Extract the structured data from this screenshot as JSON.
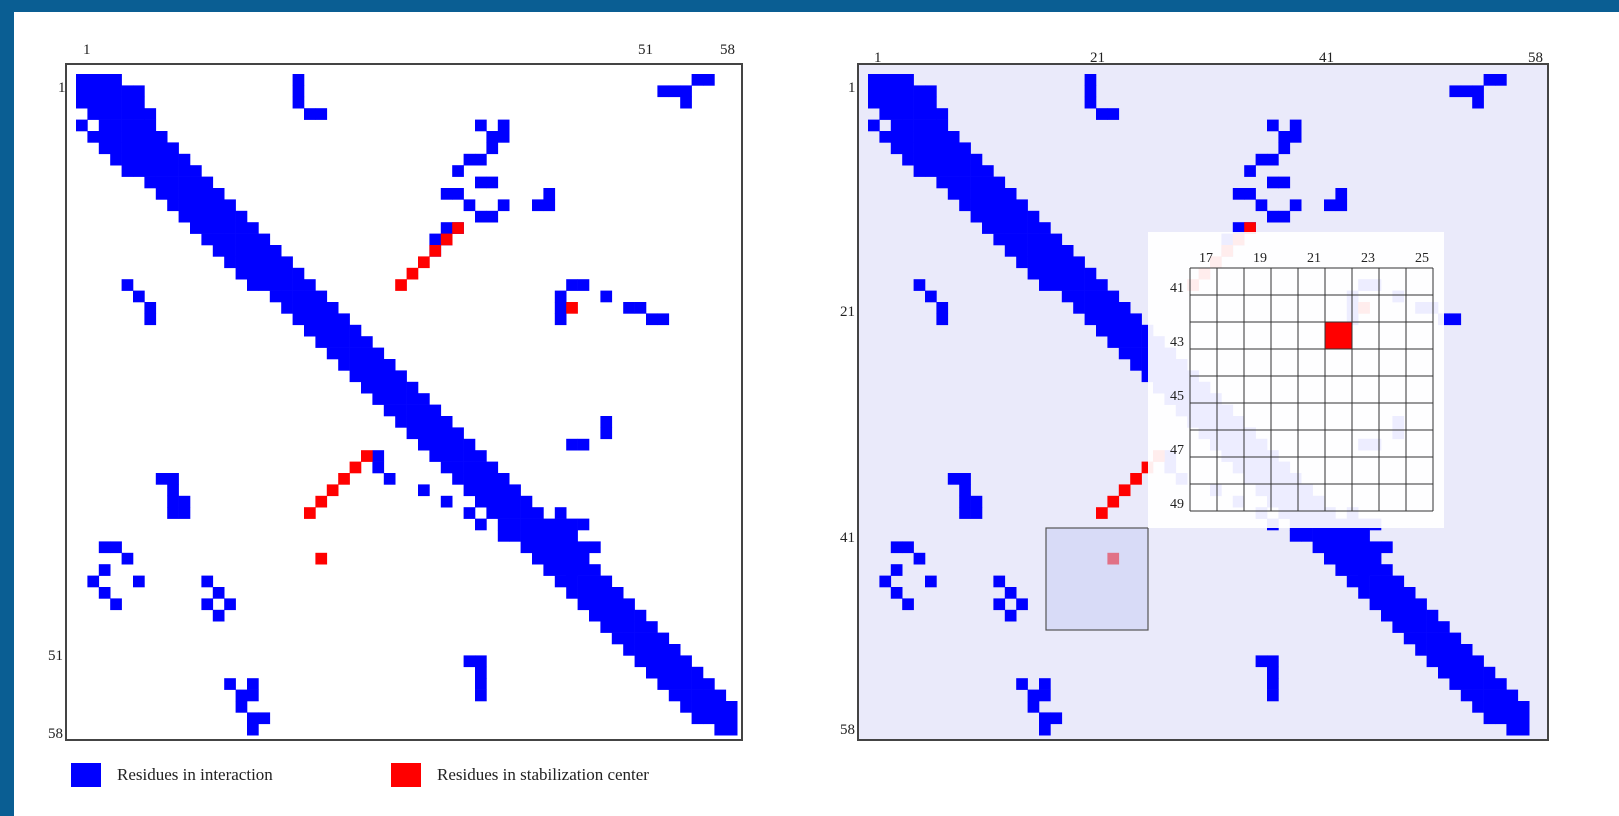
{
  "colors": {
    "interaction": "#0000ff",
    "stabilization": "#ff0000",
    "highlight": "#eaeafa"
  },
  "left_map": {
    "ticks_top": [
      "1",
      "51",
      "58"
    ],
    "ticks_left": [
      "1",
      "51",
      "58"
    ]
  },
  "right_map": {
    "ticks_top": [
      "1",
      "21",
      "41",
      "58"
    ],
    "ticks_left": [
      "1",
      "21",
      "41",
      "58"
    ]
  },
  "inset": {
    "col_labels": [
      "17",
      "19",
      "21",
      "23",
      "25"
    ],
    "row_labels": [
      "41",
      "43",
      "45",
      "47",
      "49"
    ]
  },
  "legend": {
    "interaction_label": "Residues in interaction",
    "stabilization_label": "Residues in stabilization center"
  },
  "contacts": {
    "blue": [
      [
        1,
        1
      ],
      [
        1,
        2
      ],
      [
        1,
        3
      ],
      [
        1,
        4
      ],
      [
        2,
        1
      ],
      [
        2,
        2
      ],
      [
        2,
        3
      ],
      [
        2,
        4
      ],
      [
        2,
        5
      ],
      [
        2,
        6
      ],
      [
        3,
        1
      ],
      [
        3,
        2
      ],
      [
        3,
        3
      ],
      [
        3,
        4
      ],
      [
        3,
        5
      ],
      [
        3,
        6
      ],
      [
        4,
        2
      ],
      [
        4,
        3
      ],
      [
        4,
        4
      ],
      [
        4,
        5
      ],
      [
        4,
        6
      ],
      [
        4,
        7
      ],
      [
        5,
        1
      ],
      [
        5,
        3
      ],
      [
        5,
        4
      ],
      [
        5,
        5
      ],
      [
        5,
        6
      ],
      [
        5,
        7
      ],
      [
        6,
        2
      ],
      [
        6,
        3
      ],
      [
        6,
        4
      ],
      [
        6,
        5
      ],
      [
        6,
        6
      ],
      [
        6,
        7
      ],
      [
        6,
        8
      ],
      [
        7,
        3
      ],
      [
        7,
        4
      ],
      [
        7,
        5
      ],
      [
        7,
        6
      ],
      [
        7,
        7
      ],
      [
        7,
        8
      ],
      [
        7,
        9
      ],
      [
        8,
        4
      ],
      [
        8,
        5
      ],
      [
        8,
        6
      ],
      [
        8,
        7
      ],
      [
        8,
        8
      ],
      [
        8,
        9
      ],
      [
        8,
        10
      ],
      [
        9,
        5
      ],
      [
        9,
        6
      ],
      [
        9,
        7
      ],
      [
        9,
        8
      ],
      [
        9,
        9
      ],
      [
        9,
        10
      ],
      [
        9,
        11
      ],
      [
        10,
        7
      ],
      [
        10,
        8
      ],
      [
        10,
        9
      ],
      [
        10,
        10
      ],
      [
        10,
        11
      ],
      [
        10,
        12
      ],
      [
        11,
        8
      ],
      [
        11,
        9
      ],
      [
        11,
        10
      ],
      [
        11,
        11
      ],
      [
        11,
        12
      ],
      [
        11,
        13
      ],
      [
        12,
        9
      ],
      [
        12,
        10
      ],
      [
        12,
        11
      ],
      [
        12,
        12
      ],
      [
        12,
        13
      ],
      [
        12,
        14
      ],
      [
        13,
        10
      ],
      [
        13,
        11
      ],
      [
        13,
        12
      ],
      [
        13,
        13
      ],
      [
        13,
        14
      ],
      [
        13,
        15
      ],
      [
        14,
        11
      ],
      [
        14,
        12
      ],
      [
        14,
        13
      ],
      [
        14,
        14
      ],
      [
        14,
        15
      ],
      [
        14,
        16
      ],
      [
        15,
        12
      ],
      [
        15,
        13
      ],
      [
        15,
        14
      ],
      [
        15,
        15
      ],
      [
        15,
        16
      ],
      [
        15,
        17
      ],
      [
        16,
        13
      ],
      [
        16,
        14
      ],
      [
        16,
        15
      ],
      [
        16,
        16
      ],
      [
        16,
        17
      ],
      [
        16,
        18
      ],
      [
        17,
        14
      ],
      [
        17,
        15
      ],
      [
        17,
        16
      ],
      [
        17,
        17
      ],
      [
        17,
        18
      ],
      [
        17,
        19
      ],
      [
        18,
        15
      ],
      [
        18,
        16
      ],
      [
        18,
        17
      ],
      [
        18,
        18
      ],
      [
        18,
        19
      ],
      [
        18,
        20
      ],
      [
        19,
        16
      ],
      [
        19,
        17
      ],
      [
        19,
        18
      ],
      [
        19,
        19
      ],
      [
        19,
        20
      ],
      [
        19,
        21
      ],
      [
        20,
        18
      ],
      [
        20,
        19
      ],
      [
        20,
        20
      ],
      [
        20,
        21
      ],
      [
        20,
        22
      ],
      [
        21,
        19
      ],
      [
        21,
        20
      ],
      [
        21,
        21
      ],
      [
        21,
        22
      ],
      [
        21,
        23
      ],
      [
        22,
        20
      ],
      [
        22,
        21
      ],
      [
        22,
        22
      ],
      [
        22,
        23
      ],
      [
        22,
        24
      ],
      [
        23,
        21
      ],
      [
        23,
        22
      ],
      [
        23,
        23
      ],
      [
        23,
        24
      ],
      [
        23,
        25
      ],
      [
        24,
        22
      ],
      [
        24,
        23
      ],
      [
        24,
        24
      ],
      [
        24,
        25
      ],
      [
        24,
        26
      ],
      [
        25,
        23
      ],
      [
        25,
        24
      ],
      [
        25,
        25
      ],
      [
        25,
        26
      ],
      [
        25,
        27
      ],
      [
        26,
        24
      ],
      [
        26,
        25
      ],
      [
        26,
        26
      ],
      [
        26,
        27
      ],
      [
        26,
        28
      ],
      [
        27,
        25
      ],
      [
        27,
        26
      ],
      [
        27,
        27
      ],
      [
        27,
        28
      ],
      [
        27,
        29
      ],
      [
        28,
        26
      ],
      [
        28,
        27
      ],
      [
        28,
        28
      ],
      [
        28,
        29
      ],
      [
        28,
        30
      ],
      [
        29,
        27
      ],
      [
        29,
        28
      ],
      [
        29,
        29
      ],
      [
        29,
        30
      ],
      [
        29,
        31
      ],
      [
        30,
        28
      ],
      [
        30,
        29
      ],
      [
        30,
        30
      ],
      [
        30,
        31
      ],
      [
        30,
        32
      ],
      [
        31,
        29
      ],
      [
        31,
        30
      ],
      [
        31,
        31
      ],
      [
        31,
        32
      ],
      [
        31,
        33
      ],
      [
        32,
        30
      ],
      [
        32,
        31
      ],
      [
        32,
        32
      ],
      [
        32,
        33
      ],
      [
        32,
        34
      ],
      [
        33,
        31
      ],
      [
        33,
        32
      ],
      [
        33,
        33
      ],
      [
        33,
        34
      ],
      [
        33,
        35
      ],
      [
        34,
        32
      ],
      [
        34,
        33
      ],
      [
        34,
        34
      ],
      [
        34,
        35
      ],
      [
        34,
        36
      ],
      [
        35,
        33
      ],
      [
        35,
        34
      ],
      [
        35,
        35
      ],
      [
        35,
        36
      ],
      [
        35,
        37
      ],
      [
        36,
        34
      ],
      [
        36,
        35
      ],
      [
        36,
        36
      ],
      [
        36,
        37
      ],
      [
        36,
        38
      ],
      [
        37,
        35
      ],
      [
        37,
        36
      ],
      [
        37,
        37
      ],
      [
        37,
        38
      ],
      [
        37,
        39
      ],
      [
        38,
        36
      ],
      [
        38,
        37
      ],
      [
        38,
        38
      ],
      [
        38,
        39
      ],
      [
        38,
        40
      ],
      [
        39,
        37
      ],
      [
        39,
        38
      ],
      [
        39,
        39
      ],
      [
        39,
        40
      ],
      [
        39,
        41
      ],
      [
        40,
        38
      ],
      [
        40,
        39
      ],
      [
        40,
        40
      ],
      [
        40,
        41
      ],
      [
        40,
        42
      ],
      [
        41,
        39
      ],
      [
        41,
        40
      ],
      [
        41,
        41
      ],
      [
        41,
        42
      ],
      [
        41,
        43
      ],
      [
        42,
        40
      ],
      [
        42,
        41
      ],
      [
        42,
        42
      ],
      [
        42,
        43
      ],
      [
        42,
        44
      ],
      [
        43,
        41
      ],
      [
        43,
        42
      ],
      [
        43,
        43
      ],
      [
        43,
        44
      ],
      [
        43,
        45
      ],
      [
        44,
        42
      ],
      [
        44,
        43
      ],
      [
        44,
        44
      ],
      [
        44,
        45
      ],
      [
        44,
        46
      ],
      [
        45,
        43
      ],
      [
        45,
        44
      ],
      [
        45,
        45
      ],
      [
        45,
        46
      ],
      [
        45,
        47
      ],
      [
        46,
        44
      ],
      [
        46,
        45
      ],
      [
        46,
        46
      ],
      [
        46,
        47
      ],
      [
        46,
        48
      ],
      [
        47,
        45
      ],
      [
        47,
        46
      ],
      [
        47,
        47
      ],
      [
        47,
        48
      ],
      [
        47,
        49
      ],
      [
        48,
        46
      ],
      [
        48,
        47
      ],
      [
        48,
        48
      ],
      [
        48,
        49
      ],
      [
        48,
        50
      ],
      [
        49,
        47
      ],
      [
        49,
        48
      ],
      [
        49,
        49
      ],
      [
        49,
        50
      ],
      [
        49,
        51
      ],
      [
        50,
        48
      ],
      [
        50,
        49
      ],
      [
        50,
        50
      ],
      [
        50,
        51
      ],
      [
        50,
        52
      ],
      [
        51,
        49
      ],
      [
        51,
        50
      ],
      [
        51,
        51
      ],
      [
        51,
        52
      ],
      [
        51,
        53
      ],
      [
        52,
        50
      ],
      [
        52,
        51
      ],
      [
        52,
        52
      ],
      [
        52,
        53
      ],
      [
        52,
        54
      ],
      [
        53,
        51
      ],
      [
        53,
        52
      ],
      [
        53,
        53
      ],
      [
        53,
        54
      ],
      [
        53,
        55
      ],
      [
        54,
        52
      ],
      [
        54,
        53
      ],
      [
        54,
        54
      ],
      [
        54,
        55
      ],
      [
        54,
        56
      ],
      [
        55,
        53
      ],
      [
        55,
        54
      ],
      [
        55,
        55
      ],
      [
        55,
        56
      ],
      [
        55,
        57
      ],
      [
        56,
        54
      ],
      [
        56,
        55
      ],
      [
        56,
        56
      ],
      [
        56,
        57
      ],
      [
        56,
        58
      ],
      [
        57,
        55
      ],
      [
        57,
        56
      ],
      [
        57,
        57
      ],
      [
        57,
        58
      ],
      [
        58,
        57
      ],
      [
        58,
        58
      ],
      [
        14,
        33
      ],
      [
        14,
        34
      ],
      [
        13,
        36
      ],
      [
        13,
        37
      ],
      [
        12,
        35
      ],
      [
        11,
        33
      ],
      [
        11,
        34
      ],
      [
        12,
        38
      ],
      [
        15,
        32
      ],
      [
        15,
        33
      ],
      [
        16,
        32
      ],
      [
        19,
        44
      ],
      [
        19,
        45
      ],
      [
        20,
        43
      ],
      [
        20,
        47
      ],
      [
        21,
        43
      ],
      [
        22,
        43
      ],
      [
        21,
        49
      ],
      [
        21,
        50
      ],
      [
        22,
        51
      ],
      [
        22,
        52
      ],
      [
        33,
        44
      ],
      [
        33,
        45
      ],
      [
        32,
        47
      ],
      [
        31,
        47
      ],
      [
        34,
        27
      ],
      [
        35,
        27
      ],
      [
        36,
        28
      ],
      [
        37,
        31
      ],
      [
        38,
        33
      ],
      [
        39,
        35
      ],
      [
        40,
        36
      ],
      [
        41,
        38
      ],
      [
        41,
        44
      ],
      [
        42,
        44
      ],
      [
        43,
        44
      ],
      [
        44,
        44
      ],
      [
        43,
        45
      ],
      [
        42,
        45
      ],
      [
        42,
        46
      ],
      [
        1,
        20
      ],
      [
        2,
        20
      ],
      [
        3,
        20
      ],
      [
        4,
        21
      ],
      [
        4,
        22
      ],
      [
        2,
        52
      ],
      [
        2,
        53
      ],
      [
        2,
        54
      ],
      [
        3,
        54
      ],
      [
        1,
        55
      ],
      [
        1,
        56
      ],
      [
        5,
        36
      ],
      [
        5,
        38
      ],
      [
        6,
        38
      ],
      [
        6,
        37
      ],
      [
        7,
        37
      ],
      [
        8,
        35
      ],
      [
        8,
        36
      ],
      [
        9,
        34
      ],
      [
        10,
        36
      ],
      [
        10,
        37
      ],
      [
        12,
        41
      ],
      [
        12,
        42
      ],
      [
        11,
        42
      ],
      [
        36,
        8
      ],
      [
        36,
        9
      ],
      [
        37,
        9
      ],
      [
        38,
        9
      ],
      [
        39,
        9
      ],
      [
        38,
        10
      ],
      [
        39,
        10
      ],
      [
        42,
        3
      ],
      [
        42,
        4
      ],
      [
        43,
        5
      ],
      [
        44,
        3
      ],
      [
        45,
        2
      ],
      [
        46,
        3
      ],
      [
        47,
        4
      ],
      [
        45,
        6
      ],
      [
        52,
        35
      ],
      [
        52,
        36
      ],
      [
        53,
        36
      ],
      [
        54,
        36
      ],
      [
        55,
        36
      ],
      [
        20,
        6
      ],
      [
        21,
        7
      ],
      [
        22,
        7
      ],
      [
        19,
        5
      ],
      [
        45,
        12
      ],
      [
        46,
        13
      ],
      [
        47,
        12
      ],
      [
        47,
        14
      ],
      [
        48,
        13
      ],
      [
        54,
        14
      ],
      [
        55,
        15
      ],
      [
        56,
        15
      ],
      [
        54,
        16
      ],
      [
        55,
        16
      ],
      [
        57,
        16
      ],
      [
        58,
        16
      ],
      [
        57,
        17
      ],
      [
        39,
        43
      ],
      [
        40,
        43
      ],
      [
        40,
        44
      ],
      [
        40,
        45
      ]
    ],
    "red": [
      [
        14,
        34
      ],
      [
        15,
        33
      ],
      [
        16,
        32
      ],
      [
        17,
        31
      ],
      [
        18,
        30
      ],
      [
        19,
        29
      ],
      [
        34,
        26
      ],
      [
        35,
        25
      ],
      [
        36,
        24
      ],
      [
        37,
        23
      ],
      [
        38,
        22
      ],
      [
        39,
        21
      ],
      [
        21,
        44
      ],
      [
        43,
        22
      ]
    ]
  }
}
